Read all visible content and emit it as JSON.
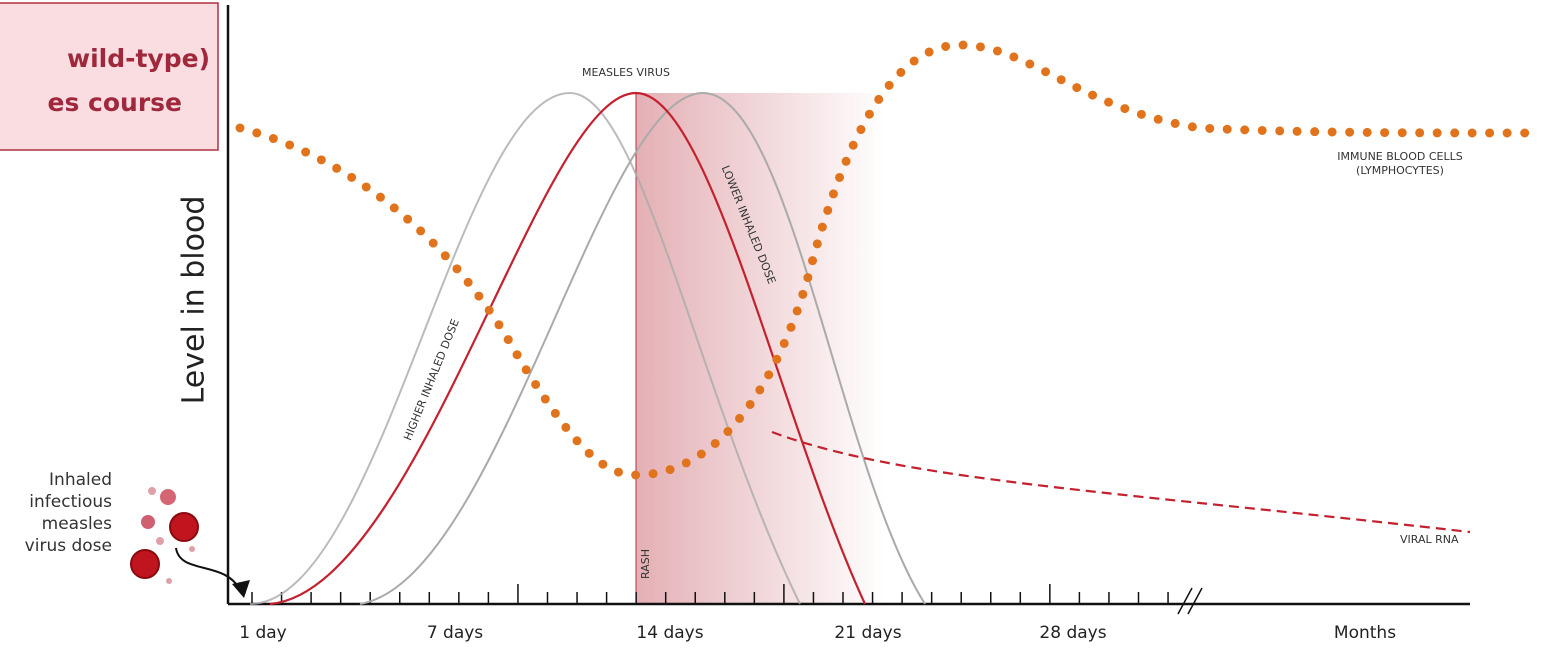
{
  "title_box": {
    "lines": [
      "wild-type)",
      "es course"
    ]
  },
  "y_axis_label": "Level in blood",
  "x_axis": {
    "labels": [
      "1 day",
      "7 days",
      "14 days",
      "21 days",
      "28 days",
      "Months"
    ]
  },
  "curve_labels": {
    "measles_virus": "MEASLES VIRUS",
    "higher_dose": "HIGHER INHALED DOSE",
    "lower_dose": "LOWER INHALED DOSE",
    "immune_cells": [
      "IMMUNE BLOOD CELLS",
      "(LYMPHOCYTES)"
    ],
    "viral_rna": "VIRAL RNA",
    "rash": "RASH"
  },
  "inhaled_note": [
    "Inhaled",
    "infectious",
    "measles",
    "virus dose"
  ]
}
